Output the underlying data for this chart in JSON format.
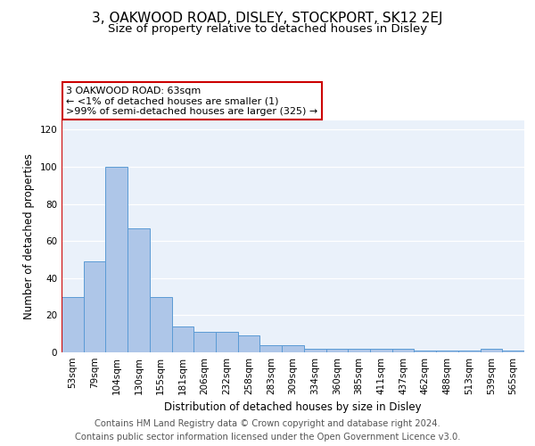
{
  "title": "3, OAKWOOD ROAD, DISLEY, STOCKPORT, SK12 2EJ",
  "subtitle": "Size of property relative to detached houses in Disley",
  "xlabel": "Distribution of detached houses by size in Disley",
  "ylabel": "Number of detached properties",
  "categories": [
    "53sqm",
    "79sqm",
    "104sqm",
    "130sqm",
    "155sqm",
    "181sqm",
    "206sqm",
    "232sqm",
    "258sqm",
    "283sqm",
    "309sqm",
    "334sqm",
    "360sqm",
    "385sqm",
    "411sqm",
    "437sqm",
    "462sqm",
    "488sqm",
    "513sqm",
    "539sqm",
    "565sqm"
  ],
  "values": [
    30,
    49,
    100,
    67,
    30,
    14,
    11,
    11,
    9,
    4,
    4,
    2,
    2,
    2,
    2,
    2,
    1,
    1,
    1,
    2,
    1
  ],
  "bar_color": "#aec6e8",
  "bar_edge_color": "#5b9bd5",
  "highlight_line_color": "#cc0000",
  "annotation_text": "3 OAKWOOD ROAD: 63sqm\n← <1% of detached houses are smaller (1)\n>99% of semi-detached houses are larger (325) →",
  "annotation_box_color": "#ffffff",
  "annotation_box_edge_color": "#cc0000",
  "ylim": [
    0,
    125
  ],
  "yticks": [
    0,
    20,
    40,
    60,
    80,
    100,
    120
  ],
  "footer_line1": "Contains HM Land Registry data © Crown copyright and database right 2024.",
  "footer_line2": "Contains public sector information licensed under the Open Government Licence v3.0.",
  "bg_color": "#eaf1fa",
  "fig_bg_color": "#ffffff",
  "title_fontsize": 11,
  "subtitle_fontsize": 9.5,
  "axis_label_fontsize": 8.5,
  "tick_fontsize": 7.5,
  "footer_fontsize": 7.2
}
